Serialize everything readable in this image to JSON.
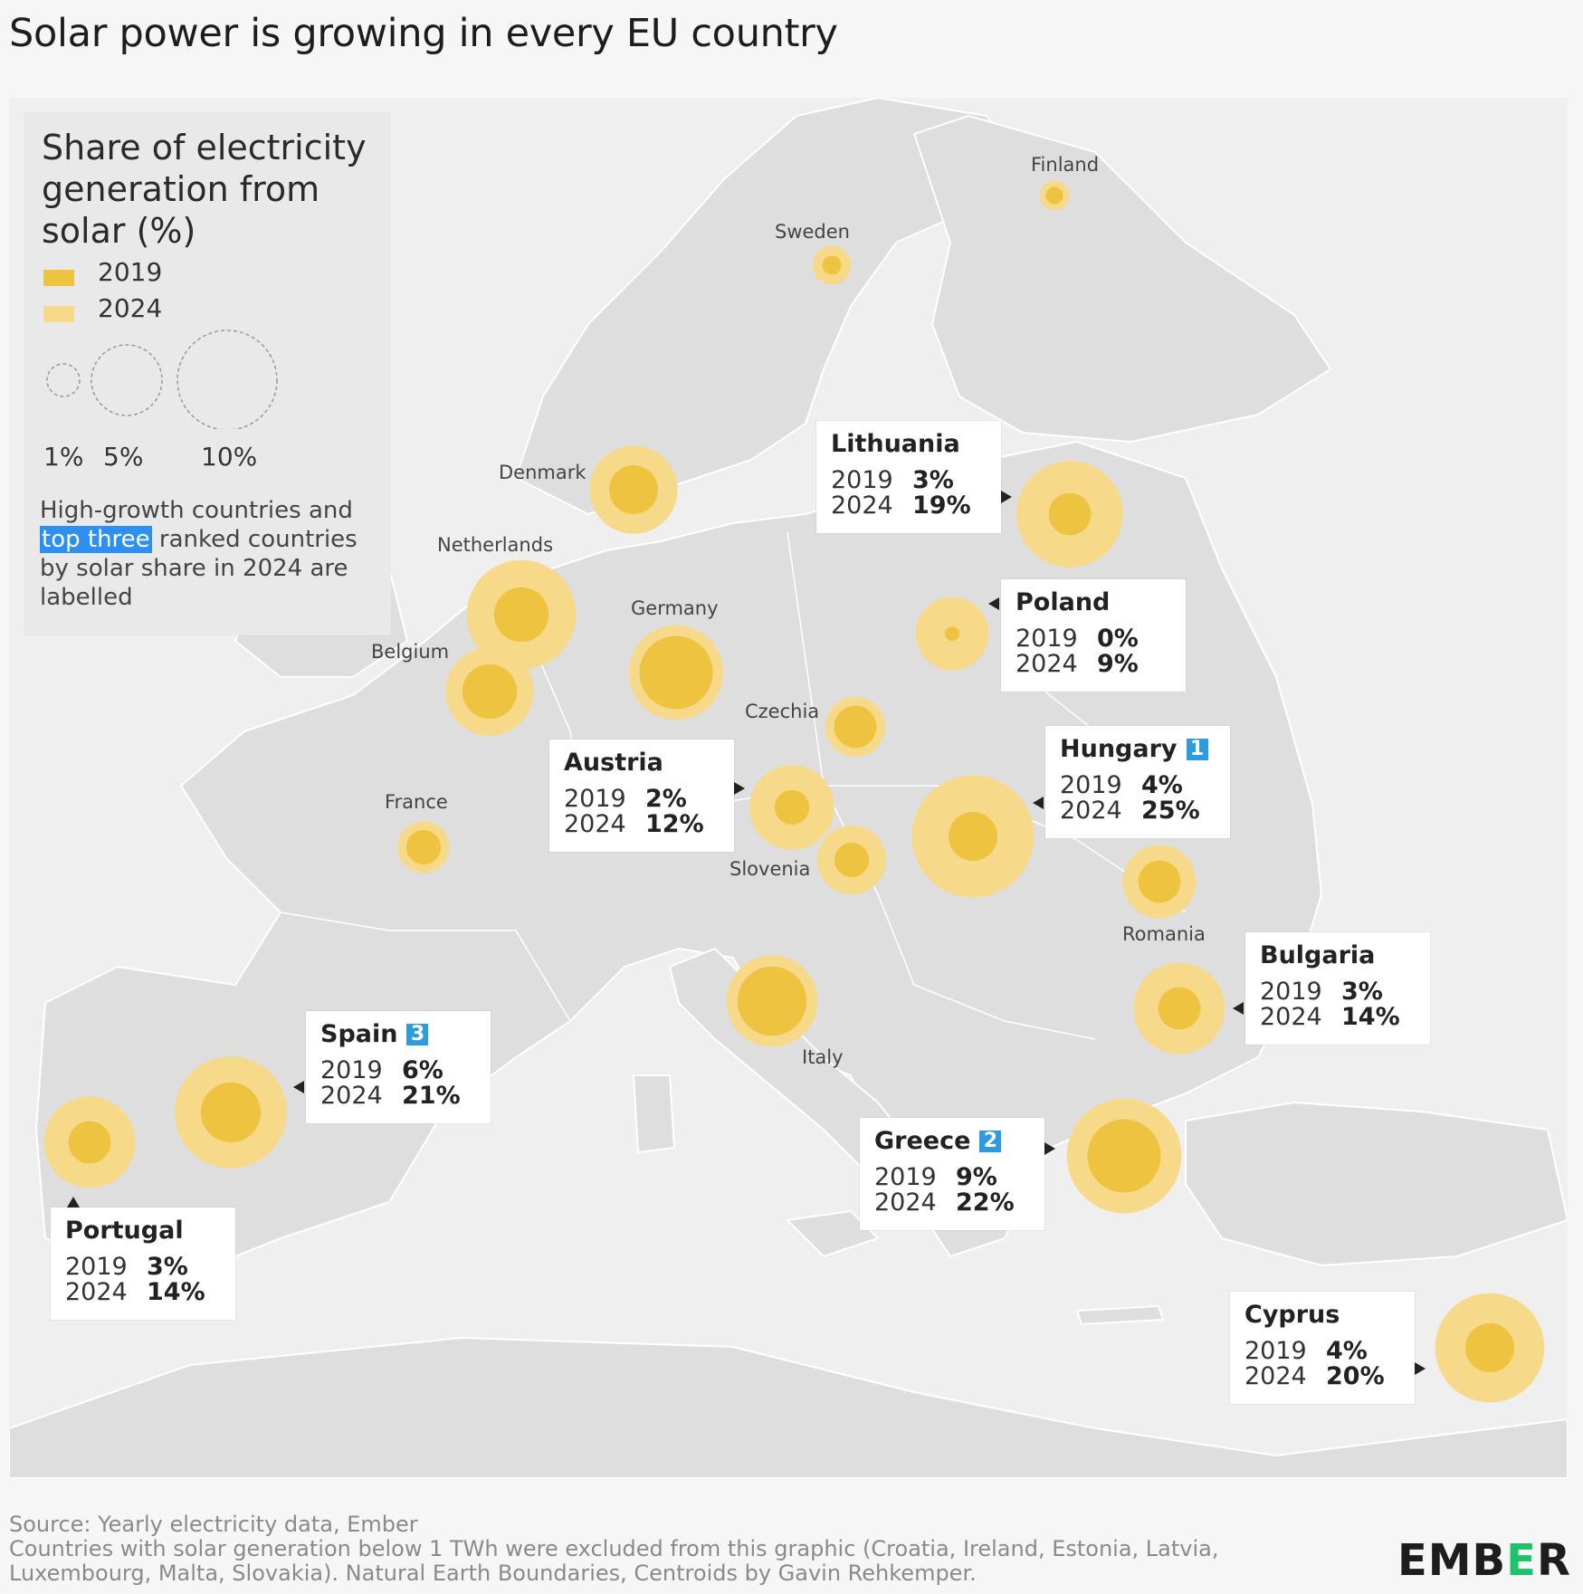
{
  "title": "Solar power is growing in every EU country",
  "legend": {
    "title": "Share of electricity generation from solar (%)",
    "series": [
      {
        "label": "2019",
        "color": "#eec33f"
      },
      {
        "label": "2024",
        "color": "#f7d98a"
      }
    ],
    "sizes": [
      "1%",
      "5%",
      "10%"
    ],
    "note_pre": "High-growth countries and ",
    "note_highlight": "top three",
    "note_post": " ranked countries by solar share in 2024 are labelled"
  },
  "countries": [
    {
      "name": "Finland",
      "v2019": 0.5,
      "v2024": 1.5
    },
    {
      "name": "Sweden",
      "v2019": 0.6,
      "v2024": 2.5
    },
    {
      "name": "Denmark",
      "v2019": 4,
      "v2024": 13
    },
    {
      "name": "Netherlands",
      "v2019": 5,
      "v2024": 20
    },
    {
      "name": "Belgium",
      "v2019": 5,
      "v2024": 13
    },
    {
      "name": "Germany",
      "v2019": 9,
      "v2024": 15
    },
    {
      "name": "France",
      "v2019": 2,
      "v2024": 4.5
    },
    {
      "name": "Czechia",
      "v2019": 3,
      "v2024": 6
    },
    {
      "name": "Slovenia",
      "v2019": 2,
      "v2024": 8
    },
    {
      "name": "Romania",
      "v2019": 3,
      "v2024": 9
    },
    {
      "name": "Italy",
      "v2019": 8,
      "v2024": 14
    },
    {
      "name": "Lithuania",
      "v2019": 3,
      "v2024": 19
    },
    {
      "name": "Poland",
      "v2019": 0,
      "v2024": 9
    },
    {
      "name": "Austria",
      "v2019": 2,
      "v2024": 12
    },
    {
      "name": "Hungary",
      "v2019": 4,
      "v2024": 25
    },
    {
      "name": "Bulgaria",
      "v2019": 3,
      "v2024": 14
    },
    {
      "name": "Spain",
      "v2019": 6,
      "v2024": 21
    },
    {
      "name": "Portugal",
      "v2019": 3,
      "v2024": 14
    },
    {
      "name": "Greece",
      "v2019": 9,
      "v2024": 22
    },
    {
      "name": "Cyprus",
      "v2019": 4,
      "v2024": 20
    }
  ],
  "callouts": {
    "lithuania": {
      "name": "Lithuania",
      "y1": "2019",
      "v1": "3%",
      "y2": "2024",
      "v2": "19%"
    },
    "poland": {
      "name": "Poland",
      "y1": "2019",
      "v1": "0%",
      "y2": "2024",
      "v2": "9%"
    },
    "austria": {
      "name": "Austria",
      "y1": "2019",
      "v1": "2%",
      "y2": "2024",
      "v2": "12%"
    },
    "hungary": {
      "name": "Hungary",
      "rank": "1",
      "y1": "2019",
      "v1": "4%",
      "y2": "2024",
      "v2": "25%"
    },
    "bulgaria": {
      "name": "Bulgaria",
      "y1": "2019",
      "v1": "3%",
      "y2": "2024",
      "v2": "14%"
    },
    "spain": {
      "name": "Spain",
      "rank": "3",
      "y1": "2019",
      "v1": "6%",
      "y2": "2024",
      "v2": "21%"
    },
    "greece": {
      "name": "Greece",
      "rank": "2",
      "y1": "2019",
      "v1": "9%",
      "y2": "2024",
      "v2": "22%"
    },
    "portugal": {
      "name": "Portugal",
      "y1": "2019",
      "v1": "3%",
      "y2": "2024",
      "v2": "14%"
    },
    "cyprus": {
      "name": "Cyprus",
      "y1": "2019",
      "v1": "4%",
      "y2": "2024",
      "v2": "20%"
    }
  },
  "map_labels": {
    "finland": "Finland",
    "sweden": "Sweden",
    "denmark": "Denmark",
    "netherlands": "Netherlands",
    "belgium": "Belgium",
    "germany": "Germany",
    "france": "France",
    "czechia": "Czechia",
    "slovenia": "Slovenia",
    "romania": "Romania",
    "italy": "Italy"
  },
  "footer": {
    "source": "Source: Yearly electricity data, Ember",
    "note1": "Countries with solar generation below 1 TWh were excluded from this graphic (Croatia, Ireland, Estonia, Latvia,",
    "note2": "Luxembourg, Malta, Slovakia). Natural Earth Boundaries, Centroids by Gavin Rehkemper."
  },
  "logo": {
    "pre": "EMB",
    "accent": "E",
    "post": "R"
  }
}
